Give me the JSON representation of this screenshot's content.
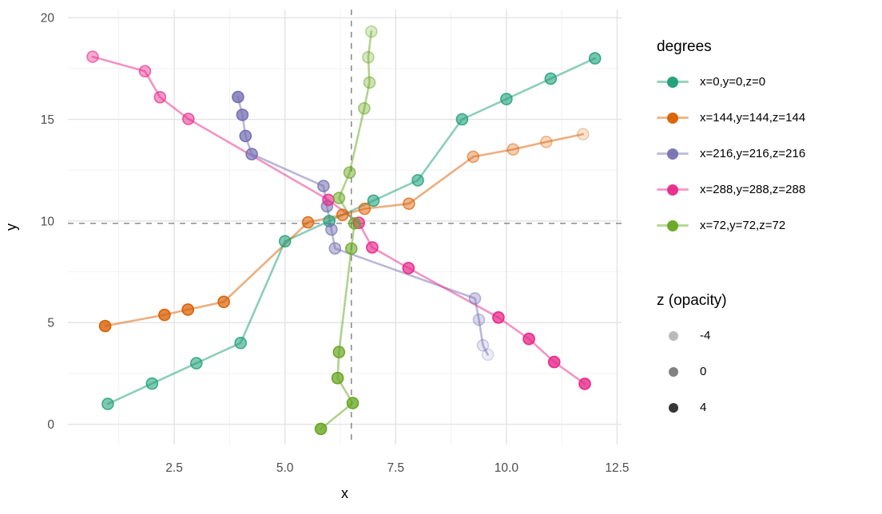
{
  "figure": {
    "background": "#ffffff"
  },
  "chart_data": {
    "type": "line-scatter",
    "title": "",
    "xlabel": "x",
    "ylabel": "y",
    "xlim": [
      0.1,
      12.6
    ],
    "ylim": [
      -1.0,
      20.4
    ],
    "x_ticks": [
      2.5,
      5.0,
      7.5,
      10.0,
      12.5
    ],
    "x_tick_labels": [
      "2.5",
      "5.0",
      "7.5",
      "10.0",
      "12.5"
    ],
    "y_ticks": [
      0,
      5,
      10,
      15,
      20
    ],
    "y_tick_labels": [
      "0",
      "5",
      "10",
      "15",
      "20"
    ],
    "x_minor_ticks": [
      1.25,
      3.75,
      6.25,
      8.75,
      11.25
    ],
    "y_minor_ticks": [
      2.5,
      7.5,
      12.5,
      17.5
    ],
    "grid": true,
    "legend_position": "right",
    "reference_lines": [
      {
        "orientation": "vertical",
        "value": 6.5,
        "style": "dashed",
        "color": "#757575"
      },
      {
        "orientation": "horizontal",
        "value": 10,
        "style": "dashed",
        "color": "#757575"
      }
    ],
    "opacity_encoding": {
      "variable": "z",
      "range": [
        -4,
        4
      ]
    },
    "series": [
      {
        "name": "x=0,y=0,z=0",
        "color": "#1B9E77",
        "points": [
          [
            1,
            1,
            0.7
          ],
          [
            2,
            2,
            0.7
          ],
          [
            3,
            3,
            0.7
          ],
          [
            4,
            4,
            0.7
          ],
          [
            5,
            9,
            0.7
          ],
          [
            6,
            10,
            0.7
          ],
          [
            7,
            11,
            0.7
          ],
          [
            8,
            12,
            0.7
          ],
          [
            9,
            15,
            0.72
          ],
          [
            10,
            16,
            0.72
          ],
          [
            11,
            17,
            0.72
          ],
          [
            12,
            18,
            0.75
          ]
        ]
      },
      {
        "name": "x=144,y=144,z=144",
        "color": "#D95F02",
        "points": [
          [
            0.94,
            4.83,
            1.0
          ],
          [
            2.28,
            5.38,
            0.95
          ],
          [
            2.81,
            5.64,
            0.9
          ],
          [
            3.62,
            6.02,
            0.85
          ],
          [
            5.52,
            9.93,
            0.72
          ],
          [
            6.3,
            10.3,
            0.68
          ],
          [
            6.8,
            10.6,
            0.63
          ],
          [
            7.8,
            10.85,
            0.58
          ],
          [
            9.25,
            13.16,
            0.45
          ],
          [
            10.15,
            13.52,
            0.38
          ],
          [
            10.9,
            13.89,
            0.3
          ],
          [
            11.73,
            14.27,
            0.2
          ]
        ]
      },
      {
        "name": "x=216,y=216,z=216",
        "color": "#7570B3",
        "points": [
          [
            3.94,
            16.1,
            1.0
          ],
          [
            4.04,
            15.22,
            0.95
          ],
          [
            4.11,
            14.18,
            0.9
          ],
          [
            4.25,
            13.29,
            0.85
          ],
          [
            5.87,
            11.72,
            0.7
          ],
          [
            5.95,
            10.72,
            0.66
          ],
          [
            6.05,
            9.58,
            0.6
          ],
          [
            6.13,
            8.65,
            0.55
          ],
          [
            9.29,
            6.19,
            0.4
          ],
          [
            9.38,
            5.14,
            0.32
          ],
          [
            9.47,
            3.88,
            0.22
          ],
          [
            9.58,
            3.42,
            0.15
          ]
        ]
      },
      {
        "name": "x=288,y=288,z=288",
        "color": "#E7298A",
        "points": [
          [
            0.66,
            18.08,
            0.5
          ],
          [
            1.84,
            17.37,
            0.55
          ],
          [
            2.18,
            16.09,
            0.6
          ],
          [
            2.82,
            15.02,
            0.65
          ],
          [
            5.98,
            11.04,
            0.75
          ],
          [
            6.67,
            9.91,
            0.8
          ],
          [
            6.97,
            8.7,
            0.83
          ],
          [
            7.79,
            7.68,
            0.87
          ],
          [
            9.82,
            5.25,
            0.93
          ],
          [
            10.51,
            4.2,
            0.96
          ],
          [
            11.08,
            3.06,
            1.0
          ],
          [
            11.77,
            1.99,
            1.0
          ]
        ]
      },
      {
        "name": "x=72,y=72,z=72",
        "color": "#66A61E",
        "points": [
          [
            5.81,
            -0.23,
            1.0
          ],
          [
            6.53,
            1.04,
            0.95
          ],
          [
            6.19,
            2.27,
            0.9
          ],
          [
            6.22,
            3.55,
            0.85
          ],
          [
            6.5,
            8.64,
            0.72
          ],
          [
            6.57,
            9.88,
            0.68
          ],
          [
            6.22,
            11.13,
            0.62
          ],
          [
            6.46,
            12.38,
            0.57
          ],
          [
            6.79,
            15.54,
            0.45
          ],
          [
            6.91,
            16.81,
            0.4
          ],
          [
            6.88,
            18.05,
            0.34
          ],
          [
            6.95,
            19.32,
            0.3
          ]
        ]
      }
    ]
  },
  "legends": {
    "color": {
      "title": "degrees",
      "items": [
        {
          "label": "x=0,y=0,z=0",
          "color": "#1B9E77"
        },
        {
          "label": "x=144,y=144,z=144",
          "color": "#D95F02"
        },
        {
          "label": "x=216,y=216,z=216",
          "color": "#7570B3"
        },
        {
          "label": "x=288,y=288,z=288",
          "color": "#E7298A"
        },
        {
          "label": "x=72,y=72,z=72",
          "color": "#66A61E"
        }
      ]
    },
    "opacity": {
      "title": "z (opacity)",
      "items": [
        {
          "label": "-4",
          "opacity": 0.3
        },
        {
          "label": "0",
          "opacity": 0.55
        },
        {
          "label": "4",
          "opacity": 0.88
        }
      ]
    }
  }
}
